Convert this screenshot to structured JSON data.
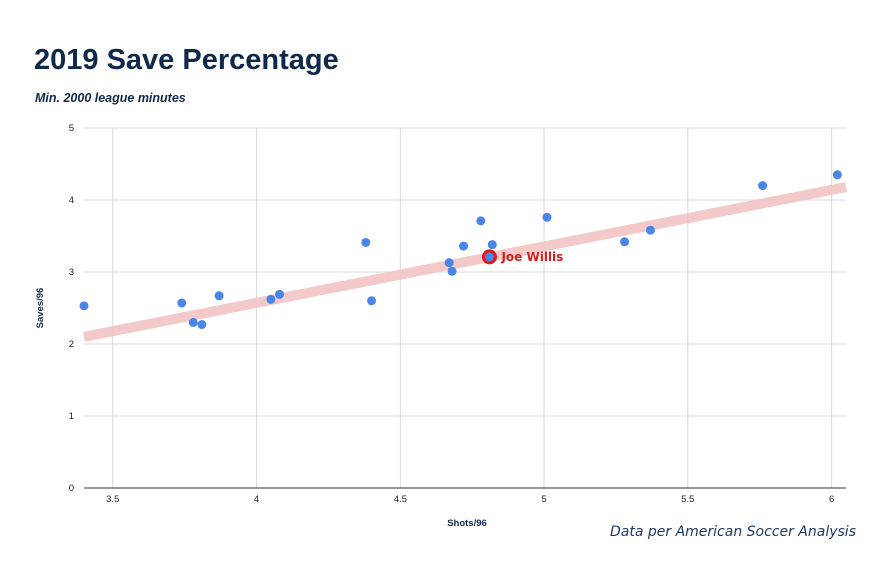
{
  "chart_data": {
    "type": "scatter",
    "title": "2019 Save Percentage",
    "subtitle": "Min. 2000 league minutes",
    "xlabel": "Shots/96",
    "ylabel": "Saves/96",
    "xlim": [
      3.4,
      6.05
    ],
    "ylim": [
      0,
      5
    ],
    "xticks": [
      "3.5",
      "4",
      "4.5",
      "5",
      "5.5",
      "6"
    ],
    "yticks": [
      "0",
      "1",
      "2",
      "3",
      "4",
      "5"
    ],
    "grid": true,
    "trendline": {
      "type": "linear",
      "from": [
        3.4,
        2.1
      ],
      "to": [
        6.05,
        4.18
      ],
      "color": "#f2c4c4"
    },
    "point_color": "#4a86e8",
    "highlight_color": "#d81b1b",
    "points": [
      {
        "x": 3.4,
        "y": 2.53
      },
      {
        "x": 3.74,
        "y": 2.57
      },
      {
        "x": 3.78,
        "y": 2.3
      },
      {
        "x": 3.81,
        "y": 2.27
      },
      {
        "x": 3.87,
        "y": 2.67
      },
      {
        "x": 4.05,
        "y": 2.62
      },
      {
        "x": 4.08,
        "y": 2.69
      },
      {
        "x": 4.38,
        "y": 3.41
      },
      {
        "x": 4.4,
        "y": 2.6
      },
      {
        "x": 4.67,
        "y": 3.13
      },
      {
        "x": 4.68,
        "y": 3.01
      },
      {
        "x": 4.72,
        "y": 3.36
      },
      {
        "x": 4.78,
        "y": 3.71
      },
      {
        "x": 4.81,
        "y": 3.21,
        "highlight": true,
        "label": "Joe Willis"
      },
      {
        "x": 4.82,
        "y": 3.38
      },
      {
        "x": 5.01,
        "y": 3.76
      },
      {
        "x": 5.28,
        "y": 3.42
      },
      {
        "x": 5.37,
        "y": 3.58
      },
      {
        "x": 5.76,
        "y": 4.2
      },
      {
        "x": 6.02,
        "y": 4.35
      }
    ],
    "source": "Data per American Soccer Analysis"
  }
}
